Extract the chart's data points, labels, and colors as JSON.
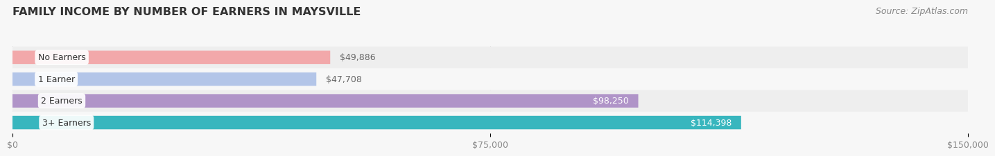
{
  "title": "FAMILY INCOME BY NUMBER OF EARNERS IN MAYSVILLE",
  "source": "Source: ZipAtlas.com",
  "categories": [
    "No Earners",
    "1 Earner",
    "2 Earners",
    "3+ Earners"
  ],
  "values": [
    49886,
    47708,
    98250,
    114398
  ],
  "labels": [
    "$49,886",
    "$47,708",
    "$98,250",
    "$114,398"
  ],
  "bar_colors": [
    "#f2a8aa",
    "#b3c5e8",
    "#b094c8",
    "#38b6be"
  ],
  "label_colors": [
    "#666666",
    "#666666",
    "#ffffff",
    "#ffffff"
  ],
  "xlim": [
    0,
    150000
  ],
  "xtick_vals": [
    0,
    75000,
    150000
  ],
  "xtick_labels": [
    "$0",
    "$75,000",
    "$150,000"
  ],
  "title_fontsize": 11.5,
  "source_fontsize": 9,
  "label_fontsize": 9,
  "category_fontsize": 9,
  "tick_fontsize": 9,
  "fig_bg": "#f7f7f7",
  "row_colors": [
    "#eeeeee",
    "#f7f7f7",
    "#eeeeee",
    "#f7f7f7"
  ]
}
